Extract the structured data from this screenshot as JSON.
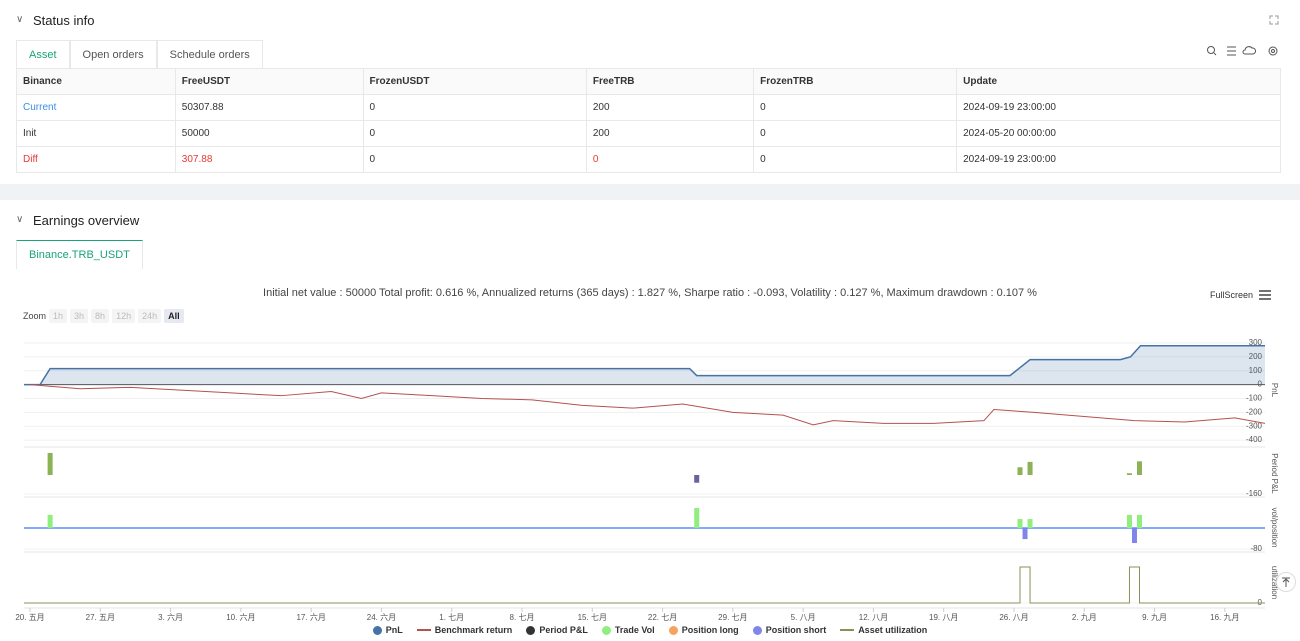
{
  "status": {
    "title": "Status info",
    "tabs": [
      "Asset",
      "Open orders",
      "Schedule orders"
    ],
    "table": {
      "header": [
        "Binance",
        "FreeUSDT",
        "FrozenUSDT",
        "FreeTRB",
        "FrozenTRB",
        "Update"
      ],
      "rows": [
        [
          "Current",
          50307.88,
          0,
          200,
          0,
          "2024-09-19 23:00:00"
        ],
        [
          "Init",
          50000,
          0,
          200,
          0,
          "2024-05-20 00:00:00"
        ],
        [
          "Diff",
          307.88,
          0,
          0,
          0,
          "2024-09-19 23:00:00"
        ]
      ]
    }
  },
  "earnings": {
    "title": "Earnings overview",
    "tab": "Binance.TRB_USDT",
    "summary": "Initial net value : 50000 Total profit: 0.616 %, Annualized returns (365 days) : 1.827 %, Sharpe ratio : -0.093, Volatility : 0.127 %, Maximum drawdown : 0.107 %",
    "fullscreen": "FullScreen",
    "zoom_label": "Zoom",
    "zoom_buttons": [
      "1h",
      "3h",
      "8h",
      "12h",
      "24h",
      "All"
    ]
  },
  "chart_data": [
    {
      "type": "line",
      "ylabel": "PnL",
      "xlim": [
        -0.6,
        123
      ],
      "ylim": [
        -450,
        372
      ],
      "yticks": [
        300,
        200,
        100,
        0,
        -100,
        -200,
        -300,
        -400
      ],
      "series": [
        {
          "name": "PnL",
          "color": "#4572a7",
          "fill": true,
          "legend_marker": "dot",
          "x": [
            -0.6,
            1,
            2,
            65.7,
            66.4,
            97.6,
            99.6,
            108.6,
            109.6,
            110.6,
            123
          ],
          "values": [
            0,
            0,
            115,
            115,
            65,
            65,
            180,
            180,
            200,
            280,
            280
          ]
        },
        {
          "name": "Benchmark return",
          "color": "#b5524f",
          "fill": false,
          "legend_marker": "line",
          "x": [
            0,
            5,
            10,
            15,
            20,
            25,
            30,
            33,
            35,
            40,
            45,
            50,
            55,
            60,
            65,
            70,
            75,
            78,
            80,
            85,
            90,
            95,
            96,
            100,
            105,
            110,
            115,
            120,
            123
          ],
          "values": [
            0,
            -30,
            -20,
            -40,
            -60,
            -80,
            -50,
            -100,
            -60,
            -80,
            -100,
            -110,
            -150,
            -170,
            -140,
            -200,
            -220,
            -290,
            -260,
            -280,
            -280,
            -260,
            -180,
            -200,
            -230,
            -260,
            -270,
            -240,
            -280
          ]
        }
      ]
    },
    {
      "type": "bar",
      "ylabel": "Period P&L",
      "xlim": [
        -0.6,
        123
      ],
      "ylim": [
        -185,
        210
      ],
      "yticks": [
        -160
      ],
      "up_color": "#8db255",
      "down_color": "#6e5f9e",
      "series": [
        {
          "name": "Period P&L",
          "color": "#333333",
          "legend_marker": "dot",
          "x": [
            2,
            66.4,
            98.6,
            99.6,
            109.5,
            110.5
          ],
          "values": [
            185,
            -65,
            65,
            110,
            15,
            115
          ]
        }
      ]
    },
    {
      "type": "bar",
      "ylabel": "vol/position",
      "xlim": [
        -0.6,
        123
      ],
      "ylim": [
        -91,
        95
      ],
      "yticks": [
        -80
      ],
      "series": [
        {
          "name": "Trade Vol",
          "color": "#90ee7e",
          "legend_marker": "dot",
          "x": [
            2,
            66.4,
            98.6,
            99.6,
            109.5,
            110.5
          ],
          "values": [
            50,
            76,
            34,
            34,
            50,
            50
          ]
        },
        {
          "name": "Position long",
          "color": "#f7a35c",
          "legend_marker": "dot",
          "x": [],
          "values": []
        },
        {
          "name": "Position short",
          "color": "#8085e9",
          "legend_marker": "dot",
          "x": [
            99.1,
            110
          ],
          "values": [
            -42,
            -57
          ]
        }
      ]
    },
    {
      "type": "line",
      "ylabel": "utilization",
      "xlim": [
        -0.6,
        123
      ],
      "ylim": [
        -0.14,
        1.28
      ],
      "yticks": [
        0
      ],
      "series": [
        {
          "name": "Asset utilization",
          "color": "#8d8f5a",
          "fill": false,
          "legend_marker": "line",
          "x": [
            -0.6,
            98.6,
            98.6,
            99.6,
            99.6,
            109.5,
            109.5,
            110.5,
            110.5,
            123
          ],
          "values": [
            0,
            0,
            1,
            1,
            0,
            0,
            1,
            1,
            0,
            0
          ]
        }
      ],
      "xticks": [
        {
          "value": 0,
          "label": "20. 五月"
        },
        {
          "value": 7,
          "label": "27. 五月"
        },
        {
          "value": 14,
          "label": "3. 六月"
        },
        {
          "value": 21,
          "label": "10. 六月"
        },
        {
          "value": 28,
          "label": "17. 六月"
        },
        {
          "value": 35,
          "label": "24. 六月"
        },
        {
          "value": 42,
          "label": "1. 七月"
        },
        {
          "value": 49,
          "label": "8. 七月"
        },
        {
          "value": 56,
          "label": "15. 七月"
        },
        {
          "value": 63,
          "label": "22. 七月"
        },
        {
          "value": 70,
          "label": "29. 七月"
        },
        {
          "value": 77,
          "label": "5. 八月"
        },
        {
          "value": 84,
          "label": "12. 八月"
        },
        {
          "value": 91,
          "label": "19. 八月"
        },
        {
          "value": 98,
          "label": "26. 八月"
        },
        {
          "value": 105,
          "label": "2. 九月"
        },
        {
          "value": 112,
          "label": "9. 九月"
        },
        {
          "value": 119,
          "label": "16. 九月"
        }
      ]
    }
  ]
}
